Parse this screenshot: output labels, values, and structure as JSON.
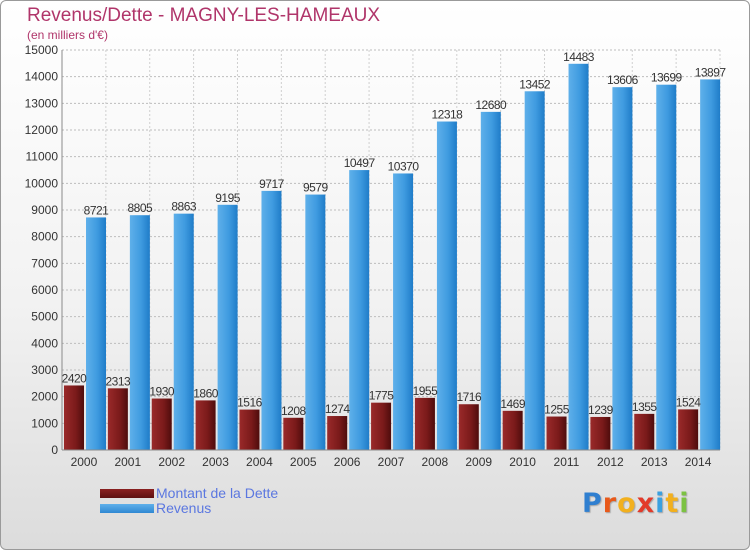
{
  "header": {
    "title": "Revenus/Dette - MAGNY-LES-HAMEAUX",
    "subtitle": "(en milliers d'€)"
  },
  "legend": {
    "debt_label": "Montant de la Dette",
    "revenue_label": "Revenus"
  },
  "logo": {
    "letters": [
      "P",
      "r",
      "o",
      "x",
      "i",
      "t",
      "i"
    ],
    "colors": [
      "#2f7fd0",
      "#e8591a",
      "#f2b01e",
      "#e23a2a",
      "#3aa0e0",
      "#f2b01e",
      "#7cc242"
    ]
  },
  "colors": {
    "debt": "#7a1a1a",
    "revenue": "#3d98dd",
    "title": "#b0356a",
    "legend_text": "#5b77e0"
  },
  "chart_data": {
    "type": "bar",
    "categories": [
      "2000",
      "2001",
      "2002",
      "2003",
      "2004",
      "2005",
      "2006",
      "2007",
      "2008",
      "2009",
      "2010",
      "2011",
      "2012",
      "2013",
      "2014"
    ],
    "series": [
      {
        "name": "Montant de la Dette",
        "values": [
          2420,
          2313,
          1930,
          1860,
          1516,
          1208,
          1274,
          1775,
          1955,
          1716,
          1469,
          1255,
          1239,
          1355,
          1524
        ],
        "labels": [
          "2420",
          "2313",
          "1930",
          "1860",
          "1516",
          "1208",
          "1274",
          "1775",
          "1955",
          "1716",
          "1469",
          "1255",
          "1239",
          "1355",
          "1524"
        ]
      },
      {
        "name": "Revenus",
        "values": [
          8721,
          8805,
          8863,
          9195,
          9717,
          9579,
          10497,
          10370,
          12318,
          12680,
          13452,
          14483,
          13606,
          13699,
          13897
        ],
        "labels": [
          "8721",
          "8805",
          "8863",
          "9195",
          "9717",
          "9579",
          "10497",
          "10370",
          "12318",
          "12680",
          "13452",
          "14483",
          "13606",
          "13699",
          "13897"
        ]
      }
    ],
    "ylim": [
      0,
      15000
    ],
    "yticks": [
      0,
      1000,
      2000,
      3000,
      4000,
      5000,
      6000,
      7000,
      8000,
      9000,
      10000,
      11000,
      12000,
      13000,
      14000,
      15000
    ],
    "grid": true,
    "legend_position": "bottom-left"
  }
}
